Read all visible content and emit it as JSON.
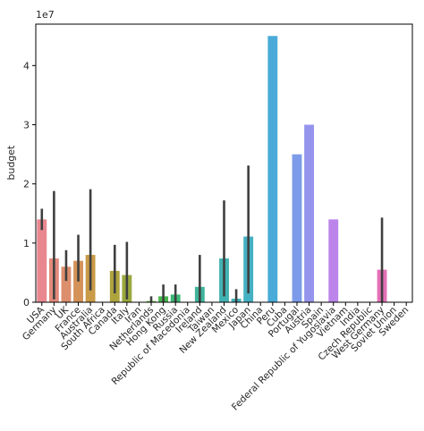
{
  "chart_data": {
    "type": "bar",
    "xlabel": "",
    "ylabel": "budget",
    "y_scale_label": "1e7",
    "ylim": [
      0,
      4.7
    ],
    "y_ticks": [
      0,
      1,
      2,
      3,
      4
    ],
    "y_unit_multiplier": 10000000,
    "grid": false,
    "categories": [
      "USA",
      "Germany",
      "UK",
      "France",
      "Australia",
      "South Africa",
      "Canada",
      "Italy",
      "Iran",
      "Netherlands",
      "Hong Kong",
      "Russia",
      "Republic of Macedonia",
      "Ireland",
      "Taiwan",
      "New Zealand",
      "Mexico",
      "Japan",
      "China",
      "Peru",
      "Cuba",
      "Portugal",
      "Austria",
      "Spain",
      "Federal Republic of Yugoslavia",
      "Vietnam",
      "India",
      "Czech Republic",
      "West Germany",
      "Soviet Union",
      "Sweden"
    ],
    "values": [
      1.4,
      0.74,
      0.6,
      0.7,
      0.8,
      0,
      0.53,
      0.46,
      0,
      0.02,
      0.1,
      0.13,
      0,
      0.26,
      0,
      0.74,
      0.06,
      1.11,
      0,
      4.5,
      0,
      2.5,
      3.0,
      0,
      1.4,
      0,
      0,
      0,
      0.55,
      0,
      0
    ],
    "err_low": [
      1.22,
      0.05,
      0.36,
      0.35,
      0.2,
      null,
      0.15,
      0.05,
      null,
      0.0,
      0.0,
      0.0,
      null,
      0.0,
      null,
      0.1,
      0.0,
      0.15,
      null,
      null,
      null,
      null,
      null,
      null,
      null,
      null,
      null,
      null,
      0.0,
      null,
      null
    ],
    "err_high": [
      1.58,
      1.88,
      0.88,
      1.14,
      1.91,
      null,
      0.97,
      1.02,
      null,
      0.1,
      0.3,
      0.3,
      null,
      0.8,
      null,
      1.72,
      0.22,
      2.31,
      null,
      null,
      null,
      null,
      null,
      null,
      null,
      null,
      null,
      null,
      1.43,
      null,
      null
    ],
    "colors": [
      "#e8878f",
      "#e28a7c",
      "#dc8e6d",
      "#d49258",
      "#c99a48",
      "#bca03f",
      "#ada43e",
      "#9ba83e",
      "#86ad3d",
      "#6bb13f",
      "#46b54b",
      "#3bb775",
      "#3db58c",
      "#3fb49b",
      "#40b3a7",
      "#41b2b1",
      "#42b1ba",
      "#44b0c3",
      "#46aecd",
      "#4aabd8",
      "#62a4e3",
      "#7c9ce9",
      "#9594ec",
      "#a98ced",
      "#bc84ea",
      "#cc7ce4",
      "#d975da",
      "#e270cf",
      "#e470b6",
      "#e6739f",
      "#e87989"
    ]
  }
}
